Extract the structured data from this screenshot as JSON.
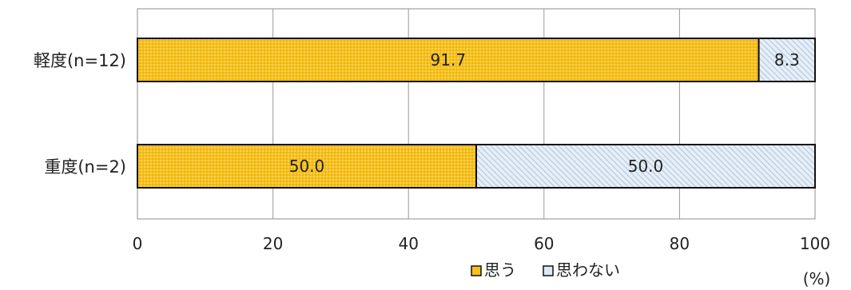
{
  "chart_data": {
    "type": "bar",
    "orientation": "horizontal",
    "stacked": true,
    "categories": [
      "軽度(n=12)",
      "重度(n=2)"
    ],
    "series": [
      {
        "name": "思う",
        "values": [
          91.7,
          50.0
        ],
        "color": "#F5C01A",
        "pattern": "dots"
      },
      {
        "name": "思わない",
        "values": [
          8.3,
          50.0
        ],
        "color": "#DDE8F3",
        "pattern": "diagonal-hatch"
      }
    ],
    "data_labels": [
      [
        "91.7",
        "50.0"
      ],
      [
        "8.3",
        "50.0"
      ]
    ],
    "xlim": [
      0,
      100
    ],
    "xticks": [
      "0",
      "20",
      "40",
      "60",
      "80",
      "100"
    ],
    "unit": "(%)",
    "grid": "vertical",
    "legend_position": "bottom-center"
  }
}
